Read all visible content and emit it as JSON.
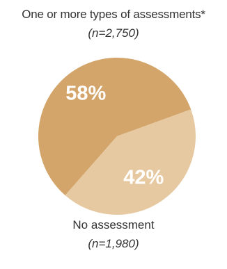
{
  "chart_data": {
    "type": "pie",
    "slices": [
      {
        "label": "One or more types of assessments*",
        "n_label": "(n=2,750)",
        "value": 58,
        "value_label": "58%",
        "color": "#d4a56a"
      },
      {
        "label": "No assessment",
        "n_label": "(n=1,980)",
        "value": 42,
        "value_label": "42%",
        "color": "#e6c9a1"
      }
    ]
  }
}
